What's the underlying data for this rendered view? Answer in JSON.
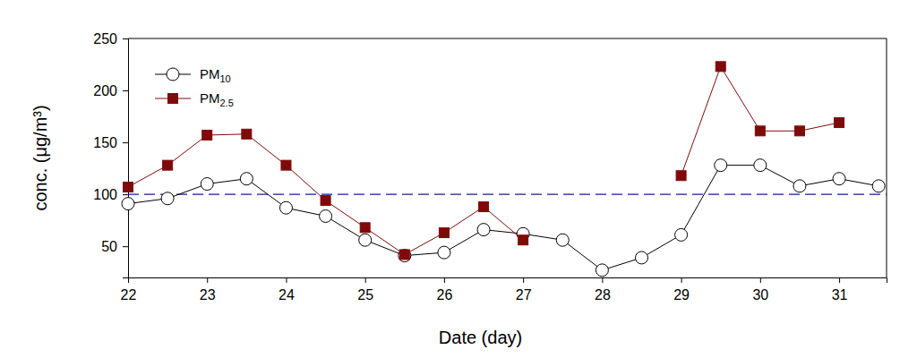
{
  "chart_data": {
    "type": "line",
    "x_label": "Date (day)",
    "y_label": "conc. (μg/m³)",
    "x": [
      22,
      22.5,
      23,
      23.5,
      24,
      24.5,
      25,
      25.5,
      26,
      26.5,
      27,
      27.5,
      28,
      28.5,
      29,
      29.5,
      30,
      30.5,
      31,
      31.5
    ],
    "series": [
      {
        "name": "PM10",
        "color": "#000000",
        "marker": "circle",
        "line_style": "solid",
        "values": [
          91,
          96,
          110,
          115,
          87,
          79,
          56,
          41,
          44,
          66,
          62,
          56,
          27,
          39,
          61,
          128,
          128,
          108,
          115,
          108
        ]
      },
      {
        "name": "PM2.5",
        "color": "#7f0a0a",
        "marker": "square",
        "line_style": "solid",
        "values": [
          107,
          128,
          157,
          158,
          128,
          94,
          68,
          42,
          63,
          88,
          56,
          null,
          null,
          null,
          118,
          223,
          161,
          161,
          169,
          null
        ]
      }
    ],
    "reference_line": {
      "value": 100,
      "color": "#1a1a8c",
      "line_style": "dashed"
    },
    "xlim": [
      22,
      31.6
    ],
    "ylim": [
      20,
      250
    ],
    "xticks": [
      22,
      23,
      24,
      25,
      26,
      27,
      28,
      29,
      30,
      31
    ],
    "yticks": [
      50,
      100,
      150,
      200,
      250
    ],
    "grid": false,
    "legend": "upper left"
  }
}
